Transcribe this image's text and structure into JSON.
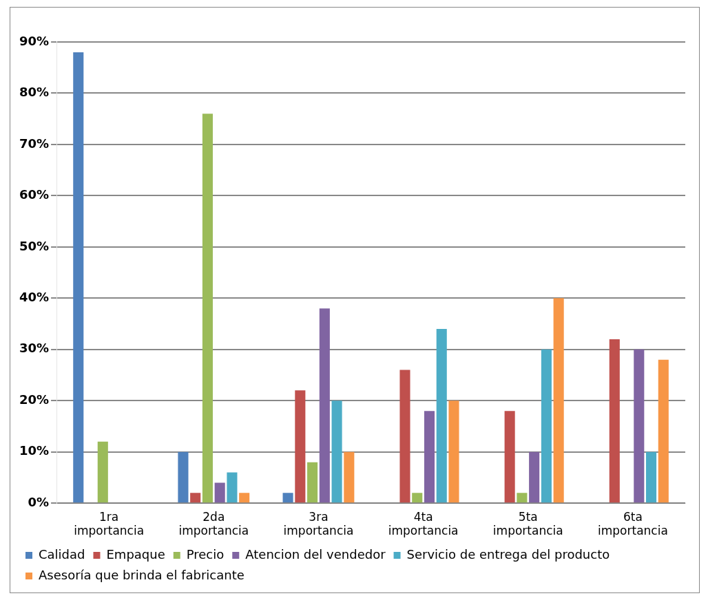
{
  "chart_data": {
    "type": "bar",
    "categories": [
      "1ra importancia",
      "2da importancia",
      "3ra importancia",
      "4ta importancia",
      "5ta importancia",
      "6ta importancia"
    ],
    "series": [
      {
        "name": "Calidad",
        "color": "#4f81bd",
        "values": [
          88,
          10,
          2,
          0,
          0,
          0
        ]
      },
      {
        "name": "Empaque",
        "color": "#c0504d",
        "values": [
          0,
          2,
          22,
          26,
          18,
          32
        ]
      },
      {
        "name": "Precio",
        "color": "#9bbb59",
        "values": [
          12,
          76,
          8,
          2,
          2,
          0
        ]
      },
      {
        "name": "Atencion del vendedor",
        "color": "#8064a2",
        "values": [
          0,
          4,
          38,
          18,
          10,
          30
        ]
      },
      {
        "name": "Servicio de entrega del producto",
        "color": "#4bacc6",
        "values": [
          0,
          6,
          20,
          34,
          30,
          10
        ]
      },
      {
        "name": "Asesoría que brinda el fabricante",
        "color": "#f79646",
        "values": [
          0,
          2,
          10,
          20,
          40,
          28
        ]
      }
    ],
    "ylim": [
      0,
      90
    ],
    "yticks": [
      {
        "value": 0,
        "label": "0%"
      },
      {
        "value": 10,
        "label": "10%"
      },
      {
        "value": 20,
        "label": "20%"
      },
      {
        "value": 30,
        "label": "30%"
      },
      {
        "value": 40,
        "label": "40%"
      },
      {
        "value": 50,
        "label": "50%"
      },
      {
        "value": 60,
        "label": "60%"
      },
      {
        "value": 70,
        "label": "70%"
      },
      {
        "value": 80,
        "label": "80%"
      },
      {
        "value": 90,
        "label": "90%"
      }
    ],
    "grid": "y",
    "legend": "bottom"
  }
}
